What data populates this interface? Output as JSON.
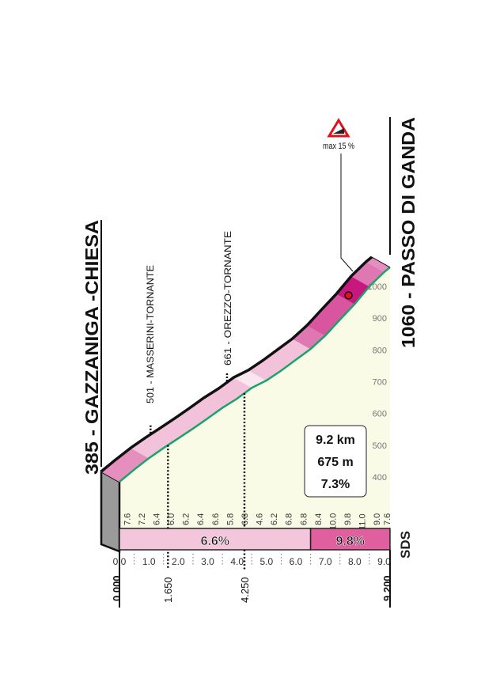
{
  "chart_data": {
    "type": "area",
    "start": {
      "label": "385 - GAZZANIGA -CHIESA",
      "altitude": 385
    },
    "finish": {
      "label": "1060 - PASSO DI GANDA",
      "altitude": 1060
    },
    "summary": {
      "distance": "9.2 km",
      "gain": "675 m",
      "avg": "7.3%"
    },
    "max_gradient": {
      "label": "max 15 %",
      "km": 8.1
    },
    "segment_km": 0.5,
    "gradients": [
      7.6,
      7.2,
      6.4,
      6.0,
      6.2,
      6.4,
      6.6,
      5.8,
      6.8,
      4.6,
      6.2,
      6.8,
      6.8,
      8.4,
      10.0,
      9.8,
      11.0,
      9.0,
      7.6
    ],
    "gradient_labels": [
      "7.6",
      "7.2",
      "6.4",
      "6.0",
      "6.2",
      "6.4",
      "6.6",
      "5.8",
      "6.8",
      "4.6",
      "6.2",
      "6.8",
      "6.8",
      "8.4",
      "10.0",
      "9.8",
      "11.0",
      "9.0",
      "7.6"
    ],
    "sectors": [
      {
        "from": 0,
        "to": 6.5,
        "label": "6.6%",
        "color": "#f4c6dc"
      },
      {
        "from": 6.5,
        "to": 9.2,
        "label": "9.8%",
        "color": "#e0609f"
      }
    ],
    "x_ticks": [
      "0.0",
      "1.0",
      "2.0",
      "3.0",
      "4.0",
      "5.0",
      "6.0",
      "7.0",
      "8.0",
      "9.0"
    ],
    "y_ticks": [
      "400",
      "500",
      "600",
      "700",
      "800",
      "900",
      "1000"
    ],
    "xlim": [
      0,
      9.2
    ],
    "ylim": [
      385,
      1060
    ],
    "grid": true,
    "waypoints": [
      {
        "km": 1.65,
        "km_label": "1.650",
        "label": "501 - MASSERINI-TORNANTE"
      },
      {
        "km": 4.25,
        "km_label": "4.250",
        "label": "661 - OREZZO-TORNANTE"
      }
    ],
    "distance_labels": {
      "start": "0.000",
      "end": "9.200"
    },
    "colors": {
      "road_edge": "#1aa36a",
      "area": "#fafbe6",
      "wall": "#9a9a9a",
      "max_marker": "#e0101e"
    }
  },
  "logo": "SDS"
}
